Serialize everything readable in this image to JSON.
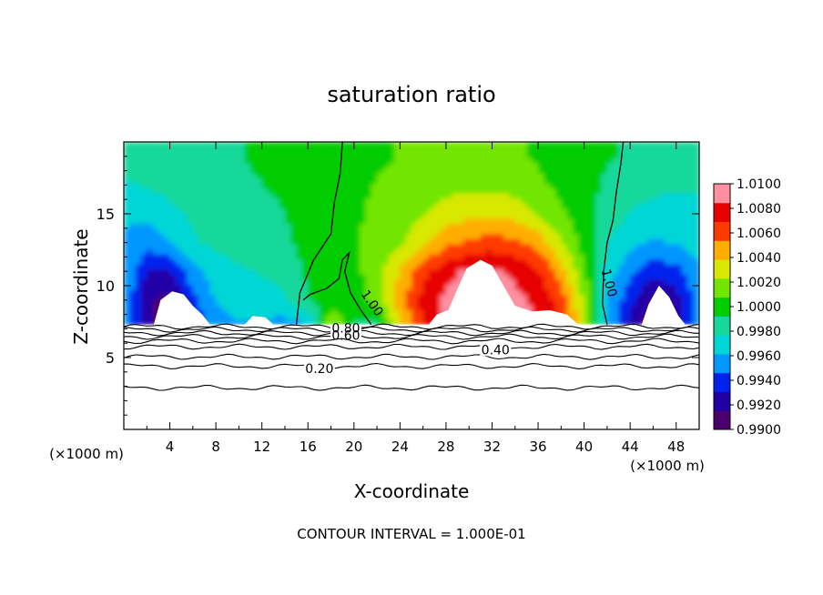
{
  "chart_data": {
    "type": "heatmap",
    "title": "saturation ratio",
    "xlabel": "X-coordinate",
    "ylabel": "Z-coordinate",
    "x_unit": "(×1000 m)",
    "x_unit_right": "(×1000 m)",
    "footer": "CONTOUR INTERVAL = 1.000E-01",
    "xlim": [
      0,
      50
    ],
    "ylim": [
      0,
      20
    ],
    "x_ticks": [
      4,
      8,
      12,
      16,
      20,
      24,
      28,
      32,
      36,
      40,
      44,
      48
    ],
    "x_tick_labels": [
      "4",
      "8",
      "12",
      "16",
      "20",
      "24",
      "28",
      "32",
      "36",
      "40",
      "44",
      "48"
    ],
    "y_ticks": [
      5,
      10,
      15
    ],
    "y_tick_labels": [
      "5",
      "10",
      "15"
    ],
    "colorbar": {
      "min": 0.99,
      "max": 1.01,
      "labels": [
        "1.0100",
        "1.0080",
        "1.0060",
        "1.0040",
        "1.0020",
        "1.0000",
        "0.9980",
        "0.9960",
        "0.9940",
        "0.9920",
        "0.9900"
      ],
      "colors": [
        "#4b006e",
        "#2200a8",
        "#0022ee",
        "#0096ff",
        "#00d6d6",
        "#16d89a",
        "#00cc00",
        "#72e600",
        "#d8e800",
        "#ffae00",
        "#ff3a00",
        "#e60000",
        "#ff90a0"
      ]
    },
    "cloud_base_z": 7.3,
    "field": {
      "x": [
        0,
        2,
        4,
        6,
        8,
        10,
        12,
        14,
        16,
        18,
        20,
        22,
        24,
        26,
        28,
        30,
        32,
        34,
        36,
        38,
        40,
        42,
        44,
        46,
        48,
        50
      ],
      "z": [
        7.3,
        9,
        11,
        13,
        15,
        17,
        19
      ],
      "values": [
        [
          0.9961,
          0.9918,
          0.9902,
          0.9935,
          0.9952,
          0.996,
          0.9958,
          0.9955,
          0.996,
          1.003,
          0.999,
          0.9985,
          1.004,
          1.007,
          1.0085,
          1.0092,
          1.0095,
          1.009,
          1.0085,
          1.0065,
          1.003,
          0.9962,
          0.9925,
          0.9905,
          0.9918,
          0.9958
        ],
        [
          0.9958,
          0.992,
          0.9908,
          0.994,
          0.9962,
          0.9968,
          0.997,
          0.9975,
          0.9992,
          0.9995,
          1.0,
          1.0012,
          1.0045,
          1.0075,
          1.0088,
          1.0093,
          1.0092,
          1.0088,
          1.0082,
          1.0062,
          1.002,
          0.9962,
          0.9935,
          0.9912,
          0.9922,
          0.9955
        ],
        [
          0.9962,
          0.993,
          0.993,
          0.9955,
          0.997,
          0.9975,
          0.9978,
          0.9982,
          0.9995,
          0.9998,
          1.0002,
          1.0018,
          1.004,
          1.0065,
          1.008,
          1.0088,
          1.0088,
          1.0082,
          1.0072,
          1.0045,
          1.001,
          0.997,
          0.995,
          0.9935,
          0.994,
          0.996
        ],
        [
          0.996,
          0.995,
          0.996,
          0.9975,
          0.998,
          0.9982,
          0.9985,
          0.999,
          0.9998,
          1.0002,
          1.0006,
          1.0012,
          1.002,
          1.0035,
          1.005,
          1.0058,
          1.0062,
          1.0058,
          1.0048,
          1.0025,
          1.0002,
          0.9978,
          0.9965,
          0.996,
          0.9962,
          0.9968
        ],
        [
          0.9964,
          0.9966,
          0.9972,
          0.998,
          0.9984,
          0.9986,
          0.9988,
          0.9992,
          0.9999,
          1.0003,
          1.0006,
          1.001,
          1.0016,
          1.0022,
          1.003,
          1.0034,
          1.0036,
          1.0032,
          1.0022,
          1.001,
          0.9998,
          0.9986,
          0.9976,
          0.9972,
          0.9972,
          0.9974
        ],
        [
          0.9975,
          0.9978,
          0.9982,
          0.9986,
          0.9988,
          0.999,
          0.9992,
          0.9995,
          1.0,
          1.0004,
          1.0006,
          1.0008,
          1.0012,
          1.0015,
          1.0018,
          1.002,
          1.002,
          1.0016,
          1.001,
          1.0004,
          0.9998,
          0.999,
          0.9984,
          0.998,
          0.9978,
          0.9978
        ],
        [
          0.9982,
          0.9984,
          0.9986,
          0.9988,
          0.999,
          0.9992,
          0.9994,
          0.9996,
          1.0,
          1.0003,
          1.0005,
          1.0006,
          1.0008,
          1.001,
          1.0012,
          1.0013,
          1.0013,
          1.001,
          1.0006,
          1.0002,
          0.9999,
          0.9994,
          0.999,
          0.9986,
          0.9984,
          0.9983
        ]
      ]
    },
    "contour_labels": [
      "1.00",
      "1.00",
      "0.80",
      "0.60",
      "0.40",
      "0.20"
    ],
    "sub_cloud_contours": [
      {
        "level": 0.9,
        "z": 7.15
      },
      {
        "level": 0.8,
        "z": 6.95
      },
      {
        "level": 0.7,
        "z": 6.7
      },
      {
        "level": 0.6,
        "z": 6.45
      },
      {
        "level": 0.5,
        "z": 6.15
      },
      {
        "level": 0.4,
        "z": 5.75
      },
      {
        "level": 0.3,
        "z": 5.05
      },
      {
        "level": 0.2,
        "z": 4.4
      },
      {
        "level": 0.1,
        "z": 2.9
      }
    ]
  }
}
